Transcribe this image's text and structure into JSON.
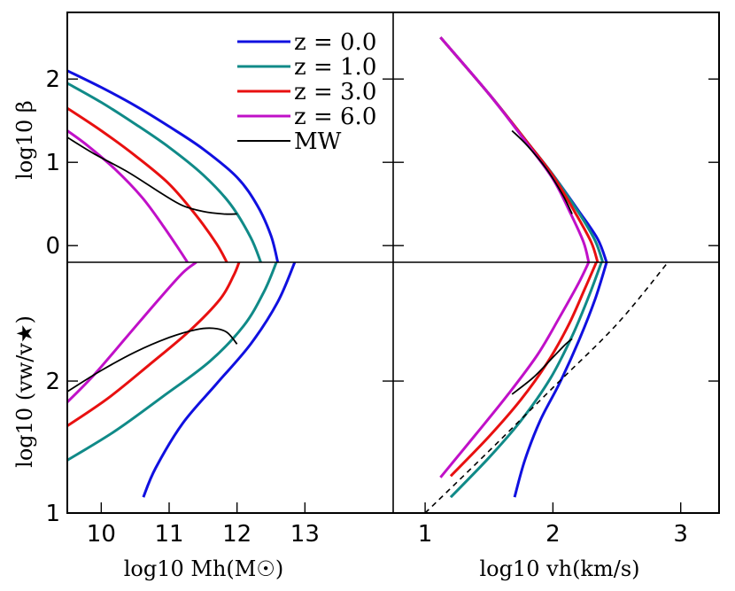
{
  "chart_data": [
    {
      "type": "line",
      "panel": "top-left",
      "ylabel": "log10 β",
      "xlim": [
        9.5,
        14.3
      ],
      "ylim": [
        -0.2,
        2.8
      ],
      "yticks": [
        "0",
        "1",
        "2"
      ],
      "series": [
        {
          "name": "z = 0.0",
          "color": "#1010e0",
          "x": [
            9.5,
            10.0,
            10.5,
            11.0,
            11.5,
            12.0,
            12.3,
            12.5,
            12.6
          ],
          "y": [
            2.1,
            1.9,
            1.68,
            1.43,
            1.16,
            0.82,
            0.48,
            0.12,
            -0.2
          ]
        },
        {
          "name": "z = 1.0",
          "color": "#108a88",
          "x": [
            9.5,
            10.0,
            10.5,
            11.0,
            11.5,
            11.9,
            12.2,
            12.35
          ],
          "y": [
            1.95,
            1.72,
            1.46,
            1.18,
            0.85,
            0.5,
            0.1,
            -0.2
          ]
        },
        {
          "name": "z = 3.0",
          "color": "#e81010",
          "x": [
            9.5,
            10.0,
            10.5,
            11.0,
            11.4,
            11.7,
            11.85
          ],
          "y": [
            1.65,
            1.38,
            1.08,
            0.74,
            0.36,
            0.02,
            -0.2
          ]
        },
        {
          "name": "z = 6.0",
          "color": "#c010c8",
          "x": [
            9.5,
            9.8,
            10.2,
            10.6,
            10.9,
            11.15,
            11.27
          ],
          "y": [
            1.38,
            1.2,
            0.92,
            0.58,
            0.25,
            -0.05,
            -0.2
          ]
        },
        {
          "name": "MW",
          "color": "#000000",
          "x": [
            9.5,
            9.9,
            10.4,
            10.9,
            11.2,
            11.5,
            11.8,
            12.0
          ],
          "y": [
            1.3,
            1.1,
            0.88,
            0.62,
            0.48,
            0.41,
            0.38,
            0.38
          ]
        }
      ],
      "legend": [
        "z = 0.0",
        "z = 1.0",
        "z = 3.0",
        "z = 6.0",
        "MW"
      ],
      "legend_position": "top-right"
    },
    {
      "type": "line",
      "panel": "top-right",
      "xlim": [
        0.75,
        3.3
      ],
      "ylim": [
        -0.2,
        2.8
      ],
      "yticks": [],
      "series": [
        {
          "name": "z = 0.0",
          "color": "#1010e0",
          "x": [
            1.12,
            1.5,
            1.8,
            2.0,
            2.2,
            2.35,
            2.42
          ],
          "y": [
            2.5,
            1.82,
            1.24,
            0.85,
            0.42,
            0.08,
            -0.2
          ]
        },
        {
          "name": "z = 1.0",
          "color": "#108a88",
          "x": [
            1.12,
            1.5,
            1.8,
            2.0,
            2.2,
            2.33,
            2.39
          ],
          "y": [
            2.5,
            1.82,
            1.24,
            0.85,
            0.4,
            0.06,
            -0.2
          ]
        },
        {
          "name": "z = 3.0",
          "color": "#e81010",
          "x": [
            1.12,
            1.5,
            1.8,
            2.0,
            2.18,
            2.3,
            2.35
          ],
          "y": [
            2.5,
            1.82,
            1.24,
            0.84,
            0.38,
            0.04,
            -0.2
          ]
        },
        {
          "name": "z = 6.0",
          "color": "#c010c8",
          "x": [
            1.12,
            1.5,
            1.8,
            2.0,
            2.14,
            2.24,
            2.28
          ],
          "y": [
            2.5,
            1.82,
            1.22,
            0.8,
            0.38,
            0.04,
            -0.2
          ]
        },
        {
          "name": "MW",
          "color": "#000000",
          "x": [
            1.68,
            1.8,
            1.95,
            2.08,
            2.15
          ],
          "y": [
            1.38,
            1.2,
            0.92,
            0.6,
            0.38
          ]
        }
      ]
    },
    {
      "type": "line",
      "panel": "bottom-left",
      "xlabel": "log10 Mh(M☉)",
      "ylabel": "log10 (vw/v★)",
      "xlim": [
        9.5,
        14.3
      ],
      "ylim": [
        1.0,
        2.9
      ],
      "xticks": [
        "10",
        "11",
        "12",
        "13"
      ],
      "yticks": [
        "1",
        "2"
      ],
      "series": [
        {
          "name": "z = 0.0",
          "color": "#1010e0",
          "x": [
            10.62,
            10.8,
            11.2,
            11.7,
            12.2,
            12.6,
            12.85
          ],
          "y": [
            1.12,
            1.34,
            1.68,
            1.98,
            2.28,
            2.6,
            2.9
          ]
        },
        {
          "name": "z = 1.0",
          "color": "#108a88",
          "x": [
            9.5,
            10.2,
            10.9,
            11.6,
            12.1,
            12.4,
            12.58
          ],
          "y": [
            1.4,
            1.62,
            1.88,
            2.15,
            2.42,
            2.68,
            2.9
          ]
        },
        {
          "name": "z = 3.0",
          "color": "#e81010",
          "x": [
            9.5,
            10.1,
            10.7,
            11.3,
            11.75,
            11.95,
            12.03
          ],
          "y": [
            1.66,
            1.87,
            2.12,
            2.38,
            2.62,
            2.8,
            2.9
          ]
        },
        {
          "name": "z = 6.0",
          "color": "#c010c8",
          "x": [
            9.5,
            9.9,
            10.4,
            10.85,
            11.2,
            11.4
          ],
          "y": [
            1.84,
            2.05,
            2.35,
            2.62,
            2.82,
            2.9
          ]
        },
        {
          "name": "MW",
          "color": "#000000",
          "x": [
            9.5,
            10.0,
            10.5,
            11.0,
            11.4,
            11.65,
            11.85,
            12.0
          ],
          "y": [
            1.92,
            2.08,
            2.22,
            2.33,
            2.39,
            2.4,
            2.37,
            2.28
          ]
        }
      ]
    },
    {
      "type": "line",
      "panel": "bottom-right",
      "xlabel": "log10 vh(km/s)",
      "xlim": [
        0.75,
        3.3
      ],
      "ylim": [
        1.0,
        2.9
      ],
      "xticks": [
        "1",
        "2",
        "3"
      ],
      "yticks": [],
      "series": [
        {
          "name": "z = 0.0",
          "color": "#1010e0",
          "x": [
            1.7,
            1.78,
            1.9,
            2.05,
            2.2,
            2.33,
            2.42
          ],
          "y": [
            1.12,
            1.4,
            1.7,
            1.98,
            2.3,
            2.62,
            2.9
          ]
        },
        {
          "name": "z = 1.0",
          "color": "#108a88",
          "x": [
            1.2,
            1.5,
            1.75,
            1.98,
            2.15,
            2.28,
            2.38
          ],
          "y": [
            1.12,
            1.42,
            1.7,
            2.02,
            2.34,
            2.64,
            2.9
          ]
        },
        {
          "name": "z = 3.0",
          "color": "#e81010",
          "x": [
            1.2,
            1.5,
            1.75,
            1.95,
            2.12,
            2.25,
            2.34
          ],
          "y": [
            1.28,
            1.58,
            1.86,
            2.13,
            2.42,
            2.7,
            2.9
          ]
        },
        {
          "name": "z = 6.0",
          "color": "#c010c8",
          "x": [
            1.12,
            1.4,
            1.65,
            1.88,
            2.05,
            2.2,
            2.28
          ],
          "y": [
            1.27,
            1.6,
            1.9,
            2.2,
            2.48,
            2.74,
            2.9
          ]
        },
        {
          "name": "MW",
          "color": "#000000",
          "x": [
            1.68,
            1.85,
            2.0,
            2.1,
            2.15
          ],
          "y": [
            1.9,
            2.03,
            2.18,
            2.28,
            2.32
          ]
        },
        {
          "name": "reference",
          "color": "#000000",
          "dashed": true,
          "x": [
            1.0,
            1.5,
            2.0,
            2.5,
            2.9
          ],
          "y": [
            1.0,
            1.47,
            1.95,
            2.43,
            2.9
          ]
        }
      ]
    }
  ]
}
